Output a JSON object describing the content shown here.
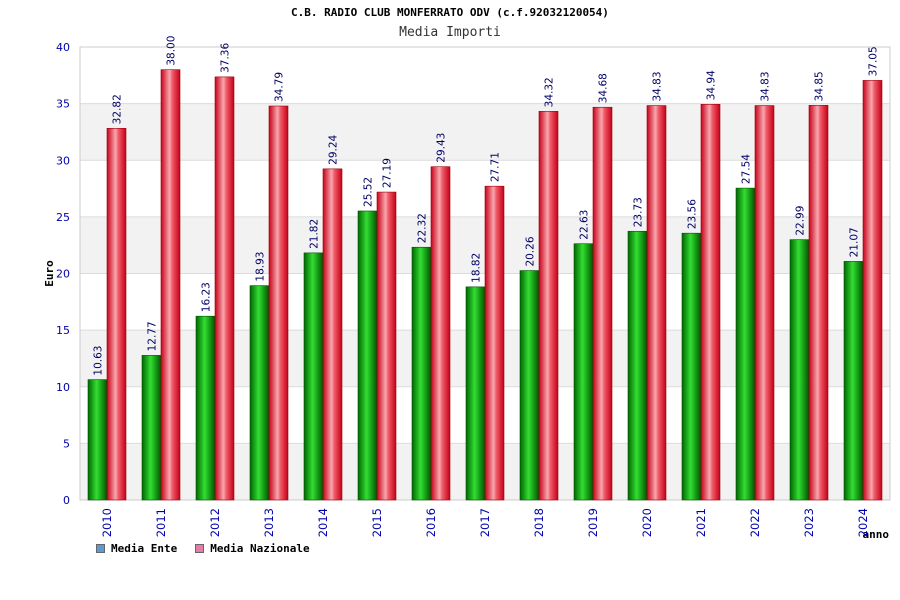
{
  "chart_data": {
    "type": "bar",
    "title": "C.B. RADIO CLUB MONFERRATO ODV (c.f.92032120054)",
    "subtitle": "Media Importi",
    "xlabel": "anno",
    "ylabel": "Euro",
    "ylim": [
      0,
      40
    ],
    "yticks": [
      0,
      5,
      10,
      15,
      20,
      25,
      30,
      35,
      40
    ],
    "categories": [
      "2010",
      "2011",
      "2012",
      "2013",
      "2014",
      "2015",
      "2016",
      "2017",
      "2018",
      "2019",
      "2020",
      "2021",
      "2022",
      "2023",
      "2024"
    ],
    "series": [
      {
        "name": "Media Ente",
        "color": "#00a000",
        "values": [
          10.63,
          12.77,
          16.23,
          18.93,
          21.82,
          25.52,
          22.32,
          18.82,
          20.26,
          22.63,
          23.73,
          23.56,
          27.54,
          22.99,
          21.07
        ],
        "labels": [
          "10.63",
          "12.77",
          "16.23",
          "18.93",
          "21.82",
          "25.52",
          "22.32",
          "18.82",
          "20.26",
          "22.63",
          "23.73",
          "23.56",
          "27.54",
          "22.99",
          "21.07"
        ]
      },
      {
        "name": "Media Nazionale",
        "color": "#e8102a",
        "values": [
          32.82,
          38.0,
          37.36,
          34.79,
          29.24,
          27.19,
          29.43,
          27.71,
          34.32,
          34.68,
          34.83,
          34.94,
          34.83,
          34.85,
          37.05
        ],
        "labels": [
          "32.82",
          "38.00",
          "37.36",
          "34.79",
          "29.24",
          "27.19",
          "29.43",
          "27.71",
          "34.32",
          "34.68",
          "34.83",
          "34.94",
          "34.83",
          "34.85",
          "37.05"
        ]
      }
    ],
    "legend": {
      "position": "bottom-left",
      "items": [
        {
          "label": "Media Ente",
          "color": "#5b9bd5"
        },
        {
          "label": "Media Nazionale",
          "color": "#e87aa8"
        }
      ]
    },
    "grid": true
  }
}
